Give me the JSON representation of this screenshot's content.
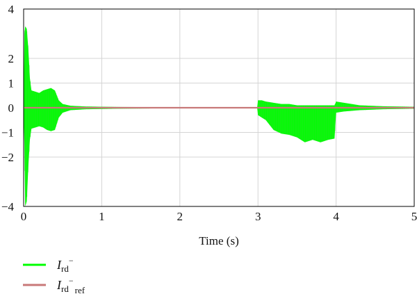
{
  "chart_data": {
    "type": "line",
    "xlabel": "Time (s)",
    "ylabel": "",
    "xlim": [
      0,
      5
    ],
    "ylim": [
      -4,
      4
    ],
    "grid": true,
    "legend_position": "bottom-left",
    "x_ticks": [
      "0",
      "1",
      "2",
      "3",
      "4",
      "5"
    ],
    "y_ticks": [
      "−4",
      "−2",
      "−1",
      "0",
      "1",
      "2",
      "4"
    ],
    "y_tick_values": [
      -4,
      -2,
      -1,
      0,
      1,
      2,
      4
    ],
    "series": [
      {
        "name": "I_rd^-",
        "legend_main": "I",
        "legend_sub": "rd",
        "legend_sup": "−",
        "legend_sub2": "",
        "color": "#00ff00",
        "envelope": [
          {
            "x": 0.0,
            "upper": 0.2,
            "lower": -0.2
          },
          {
            "x": 0.01,
            "upper": 3.0,
            "lower": -1.5
          },
          {
            "x": 0.02,
            "upper": 3.3,
            "lower": -4.0
          },
          {
            "x": 0.04,
            "upper": 3.2,
            "lower": -3.8
          },
          {
            "x": 0.06,
            "upper": 2.4,
            "lower": -2.4
          },
          {
            "x": 0.08,
            "upper": 1.2,
            "lower": -1.3
          },
          {
            "x": 0.1,
            "upper": 0.7,
            "lower": -0.85
          },
          {
            "x": 0.15,
            "upper": 0.65,
            "lower": -0.8
          },
          {
            "x": 0.2,
            "upper": 0.6,
            "lower": -0.75
          },
          {
            "x": 0.25,
            "upper": 0.7,
            "lower": -0.8
          },
          {
            "x": 0.3,
            "upper": 0.75,
            "lower": -0.9
          },
          {
            "x": 0.35,
            "upper": 0.8,
            "lower": -0.95
          },
          {
            "x": 0.4,
            "upper": 0.7,
            "lower": -0.9
          },
          {
            "x": 0.45,
            "upper": 0.3,
            "lower": -0.4
          },
          {
            "x": 0.5,
            "upper": 0.15,
            "lower": -0.2
          },
          {
            "x": 0.6,
            "upper": 0.08,
            "lower": -0.1
          },
          {
            "x": 0.8,
            "upper": 0.05,
            "lower": -0.06
          },
          {
            "x": 1.2,
            "upper": 0.03,
            "lower": -0.04
          },
          {
            "x": 2.0,
            "upper": 0.02,
            "lower": -0.02
          },
          {
            "x": 2.99,
            "upper": 0.02,
            "lower": -0.02
          },
          {
            "x": 3.0,
            "upper": 0.3,
            "lower": -0.3
          },
          {
            "x": 3.05,
            "upper": 0.3,
            "lower": -0.4
          },
          {
            "x": 3.1,
            "upper": 0.25,
            "lower": -0.5
          },
          {
            "x": 3.2,
            "upper": 0.2,
            "lower": -0.9
          },
          {
            "x": 3.3,
            "upper": 0.15,
            "lower": -1.05
          },
          {
            "x": 3.4,
            "upper": 0.15,
            "lower": -1.1
          },
          {
            "x": 3.5,
            "upper": 0.1,
            "lower": -1.2
          },
          {
            "x": 3.6,
            "upper": 0.1,
            "lower": -1.4
          },
          {
            "x": 3.7,
            "upper": 0.1,
            "lower": -1.3
          },
          {
            "x": 3.8,
            "upper": 0.1,
            "lower": -1.4
          },
          {
            "x": 3.9,
            "upper": 0.1,
            "lower": -1.3
          },
          {
            "x": 3.98,
            "upper": 0.1,
            "lower": -1.25
          },
          {
            "x": 4.0,
            "upper": 0.25,
            "lower": -0.2
          },
          {
            "x": 4.1,
            "upper": 0.2,
            "lower": -0.15
          },
          {
            "x": 4.3,
            "upper": 0.1,
            "lower": -0.1
          },
          {
            "x": 4.6,
            "upper": 0.06,
            "lower": -0.06
          },
          {
            "x": 5.0,
            "upper": 0.04,
            "lower": -0.04
          }
        ]
      },
      {
        "name": "I_rd^-_ref",
        "legend_main": "I",
        "legend_sub": "rd",
        "legend_sup": "−",
        "legend_sub2": "ref",
        "color": "#c87878",
        "x": [
          0,
          5
        ],
        "y": [
          0,
          0
        ]
      }
    ]
  }
}
